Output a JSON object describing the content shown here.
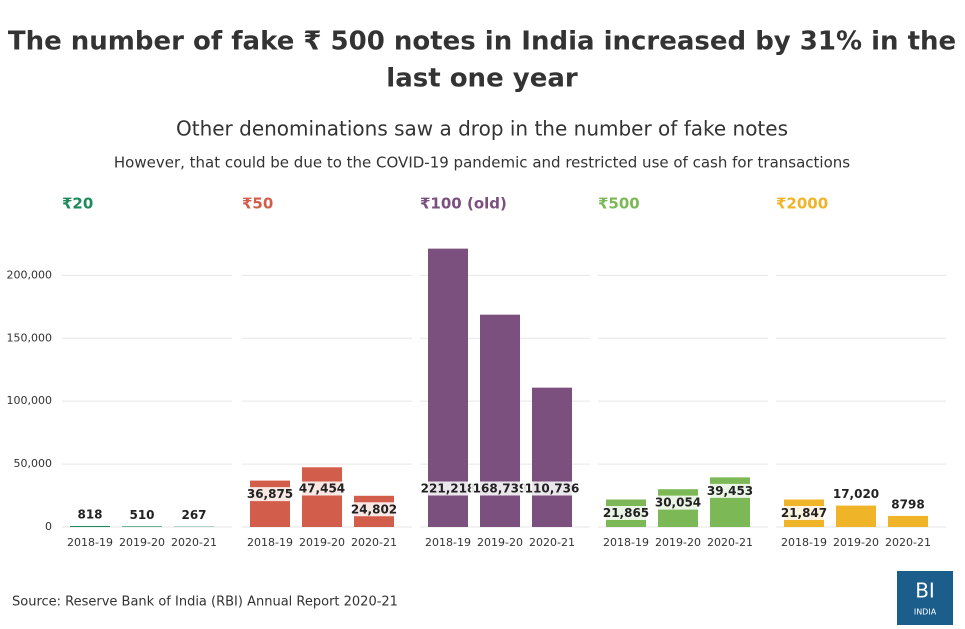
{
  "title": "The number of fake ₹ 500 notes in India increased by 31% in the last one year",
  "subtitle": "Other denominations saw a drop in the number of fake notes",
  "description": "However, that could be due to the COVID-19 pandemic and restricted use of cash for transactions",
  "source": "Source: Reserve Bank of India (RBI) Annual Report 2020-21",
  "logo": {
    "title": "BI",
    "subtitle": "INDIA"
  },
  "chart_data": [
    {
      "type": "bar",
      "title": "₹20",
      "color": "#1e8a5c",
      "categories": [
        "2018-19",
        "2019-20",
        "2020-21"
      ],
      "values": [
        818,
        510,
        267
      ],
      "value_labels": [
        "818",
        "510",
        "267"
      ],
      "ylim": [
        0,
        240000
      ],
      "yticks": [
        0,
        {
          "value": 50000,
          "label": "50,000"
        },
        {
          "value": 100000,
          "label": "100,000"
        },
        {
          "value": 150000,
          "label": "150,000"
        },
        {
          "value": 200000,
          "label": "200,000"
        }
      ],
      "grid": true
    },
    {
      "type": "bar",
      "title": "₹50",
      "color": "#d35d4b",
      "categories": [
        "2018-19",
        "2019-20",
        "2020-21"
      ],
      "values": [
        36875,
        47454,
        24802
      ],
      "value_labels": [
        "36,875",
        "47,454",
        "24,802"
      ],
      "ylim": [
        0,
        240000
      ],
      "yticks": [
        0,
        50000,
        100000,
        150000,
        200000
      ],
      "grid": true
    },
    {
      "type": "bar",
      "title": "₹100 (old)",
      "color": "#7b4f7e",
      "categories": [
        "2018-19",
        "2019-20",
        "2020-21"
      ],
      "values": [
        221218,
        168739,
        110736
      ],
      "value_labels": [
        "221,218",
        "168,739",
        "110,736"
      ],
      "ylim": [
        0,
        240000
      ],
      "yticks": [
        0,
        50000,
        100000,
        150000,
        200000
      ],
      "grid": true
    },
    {
      "type": "bar",
      "title": "₹500",
      "color": "#7cb956",
      "categories": [
        "2018-19",
        "2019-20",
        "2020-21"
      ],
      "values": [
        21865,
        30054,
        39453
      ],
      "value_labels": [
        "21,865",
        "30,054",
        "39,453"
      ],
      "ylim": [
        0,
        240000
      ],
      "yticks": [
        0,
        50000,
        100000,
        150000,
        200000
      ],
      "grid": true
    },
    {
      "type": "bar",
      "title": "₹2000",
      "color": "#f0b428",
      "categories": [
        "2018-19",
        "2019-20",
        "2020-21"
      ],
      "values": [
        21847,
        17020,
        8798
      ],
      "value_labels": [
        "21,847",
        "17,020",
        "8798"
      ],
      "ylim": [
        0,
        240000
      ],
      "yticks": [
        0,
        50000,
        100000,
        150000,
        200000
      ],
      "grid": true
    }
  ]
}
